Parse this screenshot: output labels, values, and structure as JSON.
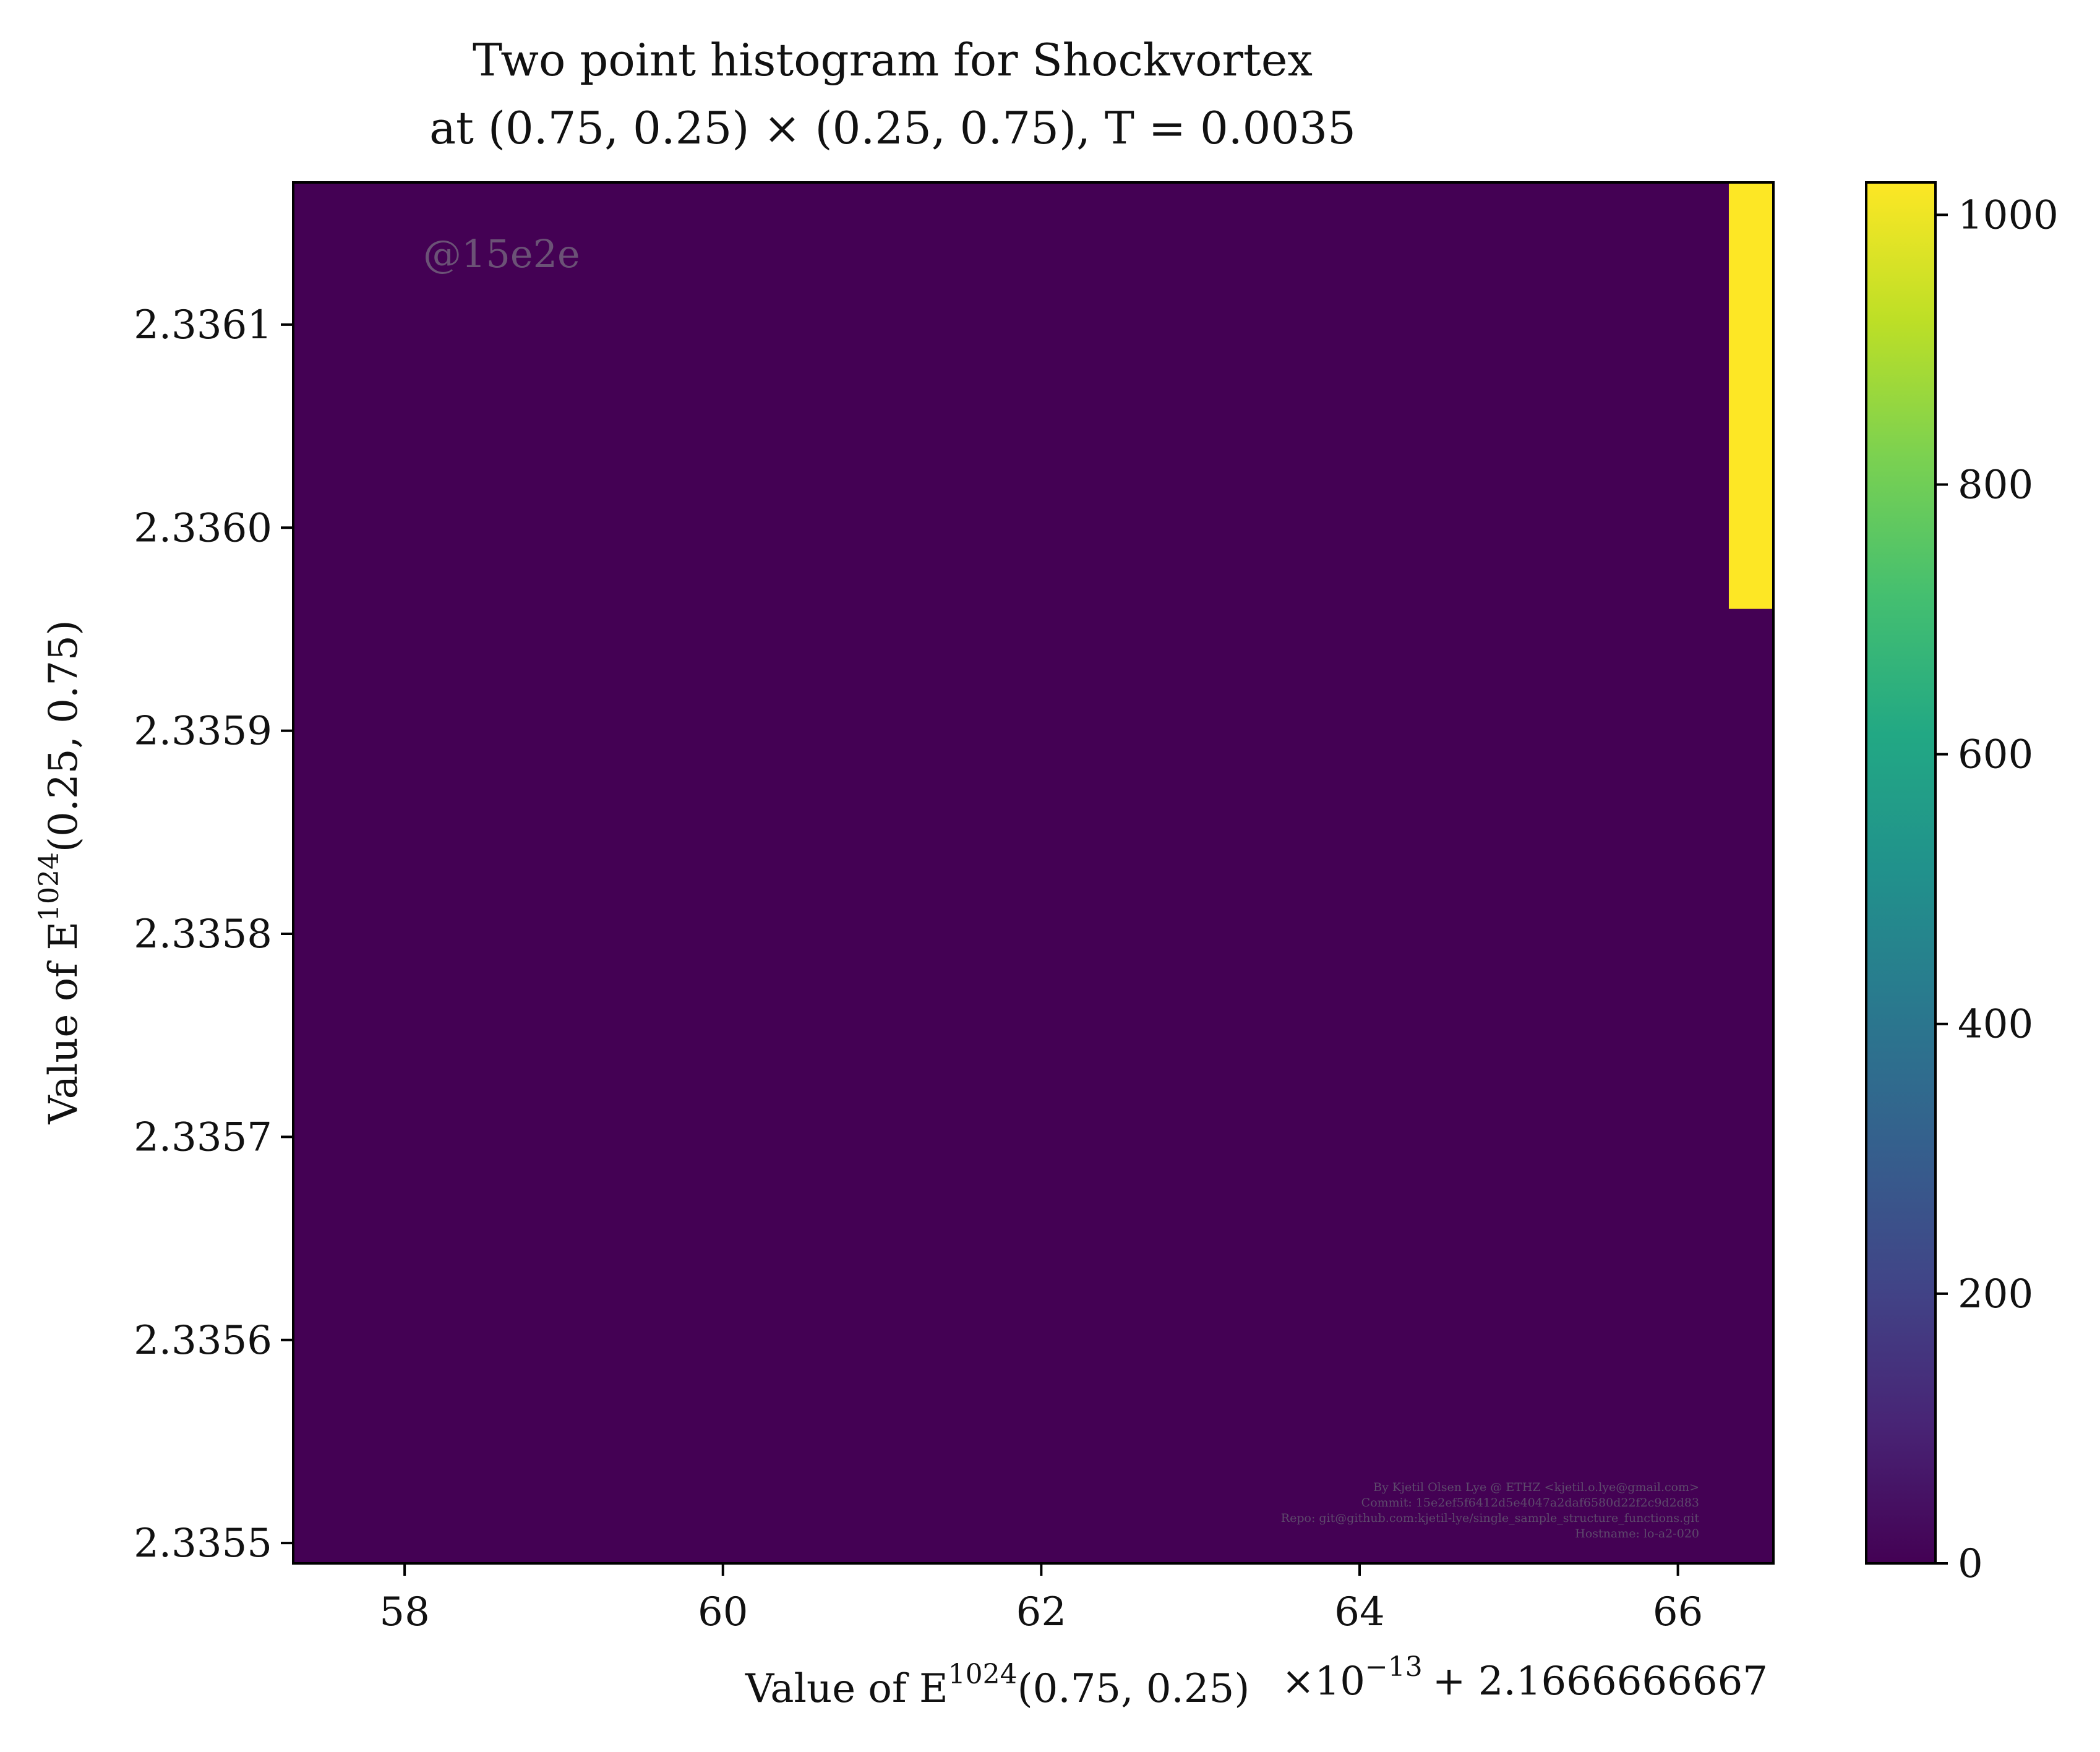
{
  "chart_data": {
    "type": "heatmap",
    "title": "Two point histogram for Shockvortex",
    "subtitle": "at (0.75, 0.25) × (0.25, 0.75), T = 0.0035",
    "xlabel": {
      "prefix": "Value of E",
      "sup": "1024",
      "suffix": "(0.75, 0.25)"
    },
    "ylabel": {
      "prefix": "Value of E",
      "sup": "1024",
      "suffix": "(0.25, 0.75)"
    },
    "x_offset_label": {
      "base": "×10",
      "exp": "−13",
      "add": "+ 2.1666666667"
    },
    "xlim": [
      57.3,
      66.6
    ],
    "ylim": [
      2.33549,
      2.33617
    ],
    "xticks": [
      58,
      60,
      62,
      64,
      66
    ],
    "xtick_labels": [
      "58",
      "60",
      "62",
      "64",
      "66"
    ],
    "yticks": [
      2.3355,
      2.3356,
      2.3357,
      2.3358,
      2.3359,
      2.336,
      2.3361
    ],
    "ytick_labels": [
      "2.3355",
      "2.3356",
      "2.3357",
      "2.3358",
      "2.3359",
      "2.3360",
      "2.3361"
    ],
    "colormap": "viridis",
    "colorbar_range": [
      0,
      1024
    ],
    "colorbar_ticks": [
      0,
      200,
      400,
      600,
      800,
      1000
    ],
    "colorbar_tick_labels": [
      "0",
      "200",
      "400",
      "600",
      "800",
      "1000"
    ],
    "background_count": 0,
    "nonzero_bins": [
      {
        "x": [
          66.32,
          66.6
        ],
        "y": [
          2.33596,
          2.33617
        ],
        "count": 1024
      }
    ],
    "watermark": "@15e2e",
    "credits": [
      "By Kjetil Olsen Lye @ ETHZ <kjetil.o.lye@gmail.com>",
      "Commit: 15e2ef5f6412d5e4047a2daf6580d22f2c9d2d83",
      "Repo: git@github.com:kjetil-lye/single_sample_structure_functions.git",
      "Hostname: lo-a2-020"
    ],
    "grid": false,
    "legend": "none"
  },
  "colors": {
    "low": "#440154",
    "high": "#fde725",
    "axis": "#000000"
  }
}
